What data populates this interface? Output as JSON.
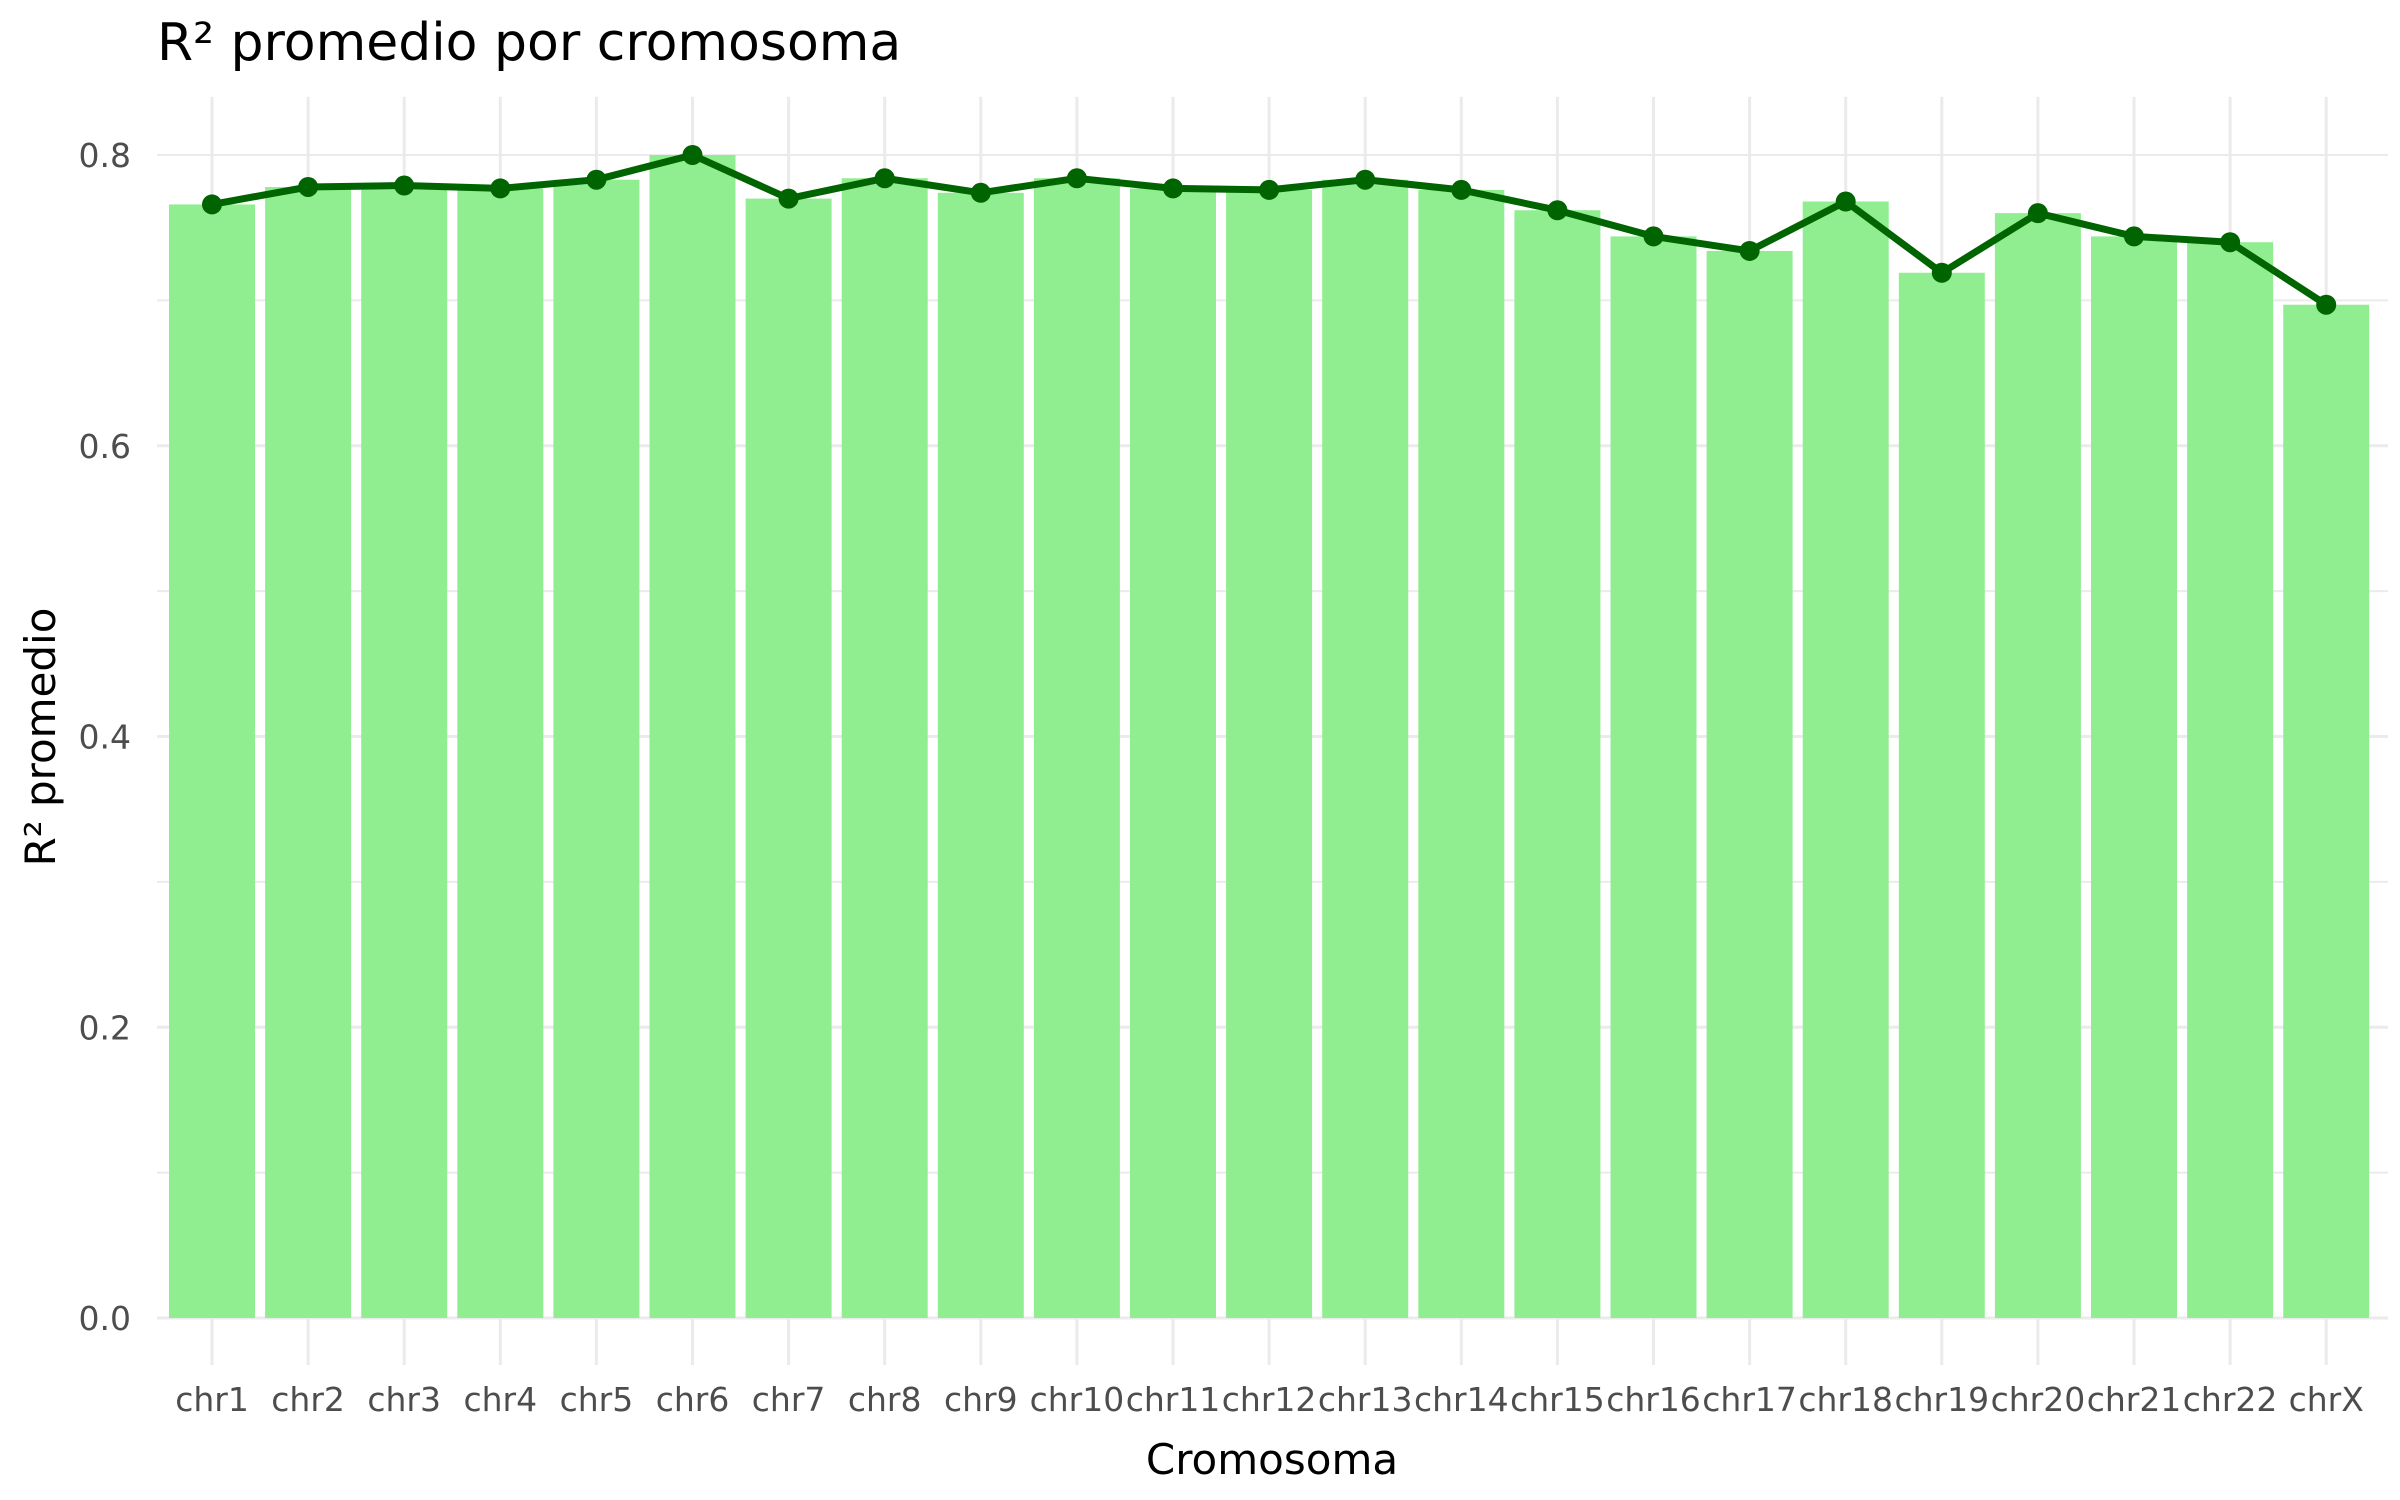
{
  "chart_data": {
    "type": "bar",
    "title": "R² promedio por cromosoma",
    "xlabel": "Cromosoma",
    "ylabel": "R² promedio",
    "categories": [
      "chr1",
      "chr2",
      "chr3",
      "chr4",
      "chr5",
      "chr6",
      "chr7",
      "chr8",
      "chr9",
      "chr10",
      "chr11",
      "chr12",
      "chr13",
      "chr14",
      "chr15",
      "chr16",
      "chr17",
      "chr18",
      "chr19",
      "chr20",
      "chr21",
      "chr22",
      "chrX"
    ],
    "values": [
      0.766,
      0.778,
      0.779,
      0.777,
      0.783,
      0.8,
      0.77,
      0.784,
      0.774,
      0.784,
      0.777,
      0.776,
      0.783,
      0.776,
      0.762,
      0.744,
      0.734,
      0.768,
      0.719,
      0.76,
      0.744,
      0.74,
      0.697
    ],
    "overlay": "line with points (same values)",
    "ylim": [
      0,
      0.8
    ],
    "yticks": [
      0.0,
      0.2,
      0.4,
      0.6,
      0.8
    ],
    "ytick_labels": [
      "0.0",
      "0.2",
      "0.4",
      "0.6",
      "0.8"
    ],
    "grid": true,
    "legend": "none",
    "colors": {
      "bar": "#90EE90",
      "line": "#006400",
      "grid": "#ebebeb"
    }
  }
}
